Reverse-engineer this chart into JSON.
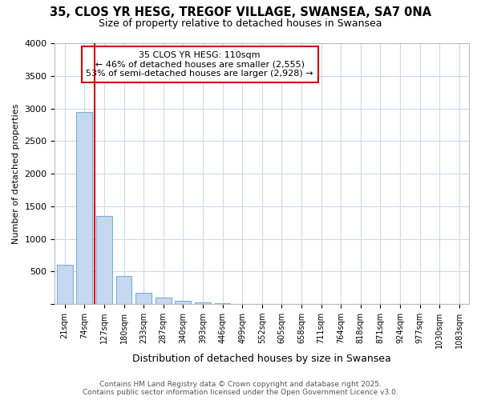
{
  "title_line1": "35, CLOS YR HESG, TREGOF VILLAGE, SWANSEA, SA7 0NA",
  "title_line2": "Size of property relative to detached houses in Swansea",
  "xlabel": "Distribution of detached houses by size in Swansea",
  "ylabel": "Number of detached properties",
  "bins": [
    "21sqm",
    "74sqm",
    "127sqm",
    "180sqm",
    "233sqm",
    "287sqm",
    "340sqm",
    "393sqm",
    "446sqm",
    "499sqm",
    "552sqm",
    "605sqm",
    "658sqm",
    "711sqm",
    "764sqm",
    "818sqm",
    "871sqm",
    "924sqm",
    "977sqm",
    "1030sqm",
    "1083sqm"
  ],
  "values": [
    600,
    2950,
    1350,
    430,
    175,
    100,
    50,
    25,
    10,
    5,
    0,
    0,
    0,
    0,
    0,
    0,
    0,
    0,
    0,
    0,
    0
  ],
  "bar_color": "#c5d8f0",
  "bar_edge_color": "#7bafd4",
  "vline_color": "#cc0000",
  "vline_x_index": 1.5,
  "annotation_text": "35 CLOS YR HESG: 110sqm\n← 46% of detached houses are smaller (2,555)\n53% of semi-detached houses are larger (2,928) →",
  "annotation_box_color": "#ffffff",
  "annotation_box_edge": "#cc0000",
  "footer_text": "Contains HM Land Registry data © Crown copyright and database right 2025.\nContains public sector information licensed under the Open Government Licence v3.0.",
  "bg_color": "#ffffff",
  "plot_bg_color": "#ffffff",
  "grid_color": "#d0d8e8",
  "ylim": [
    0,
    4000
  ],
  "yticks": [
    0,
    500,
    1000,
    1500,
    2000,
    2500,
    3000,
    3500,
    4000
  ]
}
